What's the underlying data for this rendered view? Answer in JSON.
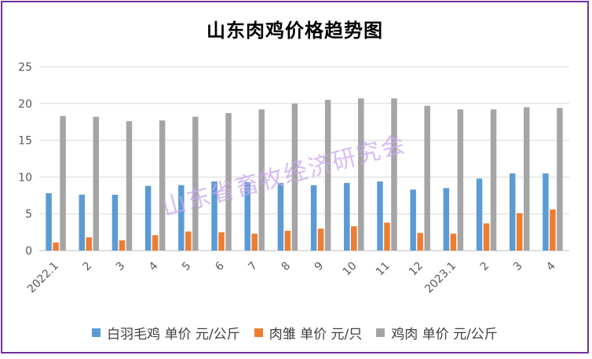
{
  "chart_data": {
    "type": "bar",
    "title": "山东肉鸡价格趋势图",
    "categories": [
      "2022.1",
      "2",
      "3",
      "4",
      "5",
      "6",
      "7",
      "8",
      "9",
      "10",
      "11",
      "12",
      "2023.1",
      "2",
      "3",
      "4"
    ],
    "ylim": [
      0,
      25
    ],
    "yticks": [
      0,
      5,
      10,
      15,
      20,
      25
    ],
    "grid": true,
    "legend_position": "bottom",
    "series": [
      {
        "name": "白羽毛鸡 单价 元/公斤",
        "color": "#5b9bd5",
        "values": [
          7.8,
          7.6,
          7.6,
          8.8,
          8.9,
          9.4,
          9.3,
          9.2,
          8.9,
          9.2,
          9.4,
          8.3,
          8.5,
          9.8,
          10.5,
          10.5
        ]
      },
      {
        "name": "肉雏 单价 元/只",
        "color": "#ed7d31",
        "values": [
          1.1,
          1.8,
          1.4,
          2.1,
          2.6,
          2.5,
          2.3,
          2.7,
          3.0,
          3.3,
          3.8,
          2.4,
          2.3,
          3.7,
          5.1,
          5.6
        ]
      },
      {
        "name": "鸡肉 单价 元/公斤",
        "color": "#a5a5a5",
        "values": [
          18.3,
          18.2,
          17.6,
          17.7,
          18.2,
          18.7,
          19.2,
          20.0,
          20.5,
          20.7,
          20.7,
          19.7,
          19.2,
          19.2,
          19.5,
          19.4
        ]
      }
    ]
  },
  "watermark": "山东省畜牧经济研究会"
}
